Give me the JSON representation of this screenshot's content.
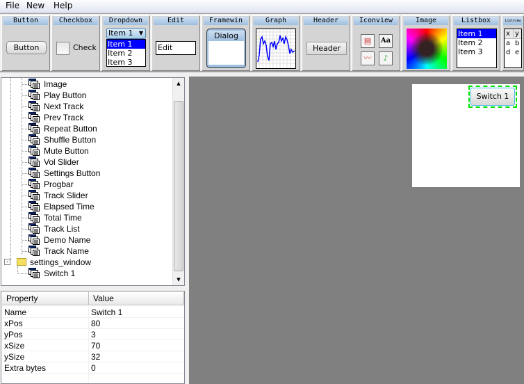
{
  "menu": {
    "items": [
      "File",
      "New",
      "Help"
    ]
  },
  "toolbar": {
    "button": {
      "header": "Button",
      "label": "Button"
    },
    "checkbox": {
      "header": "Checkbox",
      "label": "Check"
    },
    "dropdown": {
      "header": "Dropdown",
      "selected": "Item 1",
      "items": [
        "Item 1",
        "Item 2",
        "Item 3"
      ]
    },
    "edit": {
      "header": "Edit",
      "value": "Edit"
    },
    "framewin": {
      "header": "Framewin",
      "title": "Dialog"
    },
    "graph": {
      "header": "Graph"
    },
    "header": {
      "header": "Header",
      "label": "Header"
    },
    "iconview": {
      "header": "Iconview",
      "icons": [
        "books-icon",
        "font-icon",
        "graph-icon",
        "music-note-icon"
      ]
    },
    "image": {
      "header": "Image"
    },
    "listbox": {
      "header": "Listbox",
      "items": [
        "Item 1",
        "Item 2",
        "Item 3"
      ]
    },
    "listview": {
      "header": "Listview",
      "columns": [
        "x",
        "y"
      ],
      "rows": [
        [
          "a",
          "b"
        ],
        [
          "d",
          "e"
        ]
      ]
    }
  },
  "tree": {
    "items": [
      "Image",
      "Play Button",
      "Next Track",
      "Prev Track",
      "Repeat Button",
      "Shuffle Button",
      "Mute Button",
      "Vol Slider",
      "Settings Button",
      "Progbar",
      "Track Slider",
      "Elapsed Time",
      "Total Time",
      "Track List",
      "Demo Name",
      "Track Name"
    ],
    "folder": "settings_window",
    "child": "Switch 1"
  },
  "properties": {
    "headers": [
      "Property",
      "Value"
    ],
    "rows": [
      [
        "Name",
        "Switch 1"
      ],
      [
        "xPos",
        "80"
      ],
      [
        "yPos",
        "3"
      ],
      [
        "xSize",
        "70"
      ],
      [
        "ySize",
        "32"
      ],
      [
        "Extra bytes",
        "0"
      ]
    ]
  },
  "canvas": {
    "switch_label": "Switch 1"
  },
  "colors": {
    "selection": "#0000ff",
    "canvas": "#808080",
    "header_strip": "#9fbfe0"
  }
}
